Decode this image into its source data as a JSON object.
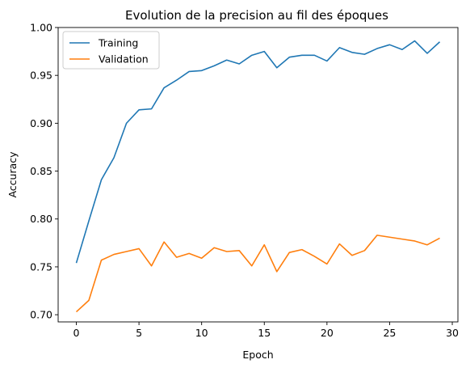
{
  "chart_data": {
    "type": "line",
    "title": "Evolution de la precision au fil des époques",
    "xlabel": "Epoch",
    "ylabel": "Accuracy",
    "xlim": [
      -1.45,
      30.45
    ],
    "ylim": [
      0.6925,
      1.0
    ],
    "xticks": [
      0,
      5,
      10,
      15,
      20,
      25,
      30
    ],
    "yticks": [
      0.7,
      0.75,
      0.8,
      0.85,
      0.9,
      0.95,
      1.0
    ],
    "x": [
      0,
      1,
      2,
      3,
      4,
      5,
      6,
      7,
      8,
      9,
      10,
      11,
      12,
      13,
      14,
      15,
      16,
      17,
      18,
      19,
      20,
      21,
      22,
      23,
      24,
      25,
      26,
      27,
      28,
      29
    ],
    "series": [
      {
        "name": "Training",
        "color": "#1f77b4",
        "values": [
          0.754,
          0.798,
          0.841,
          0.864,
          0.9,
          0.914,
          0.915,
          0.937,
          0.945,
          0.954,
          0.955,
          0.96,
          0.966,
          0.962,
          0.971,
          0.975,
          0.958,
          0.969,
          0.971,
          0.971,
          0.965,
          0.979,
          0.974,
          0.972,
          0.978,
          0.982,
          0.977,
          0.986,
          0.973,
          0.985
        ]
      },
      {
        "name": "Validation",
        "color": "#ff7f0e",
        "values": [
          0.703,
          0.715,
          0.757,
          0.763,
          0.766,
          0.769,
          0.751,
          0.776,
          0.76,
          0.764,
          0.759,
          0.77,
          0.766,
          0.767,
          0.751,
          0.773,
          0.745,
          0.765,
          0.768,
          0.761,
          0.753,
          0.774,
          0.762,
          0.767,
          0.783,
          0.781,
          0.779,
          0.777,
          0.773,
          0.78
        ]
      }
    ],
    "legend": "top-left",
    "grid": false
  }
}
